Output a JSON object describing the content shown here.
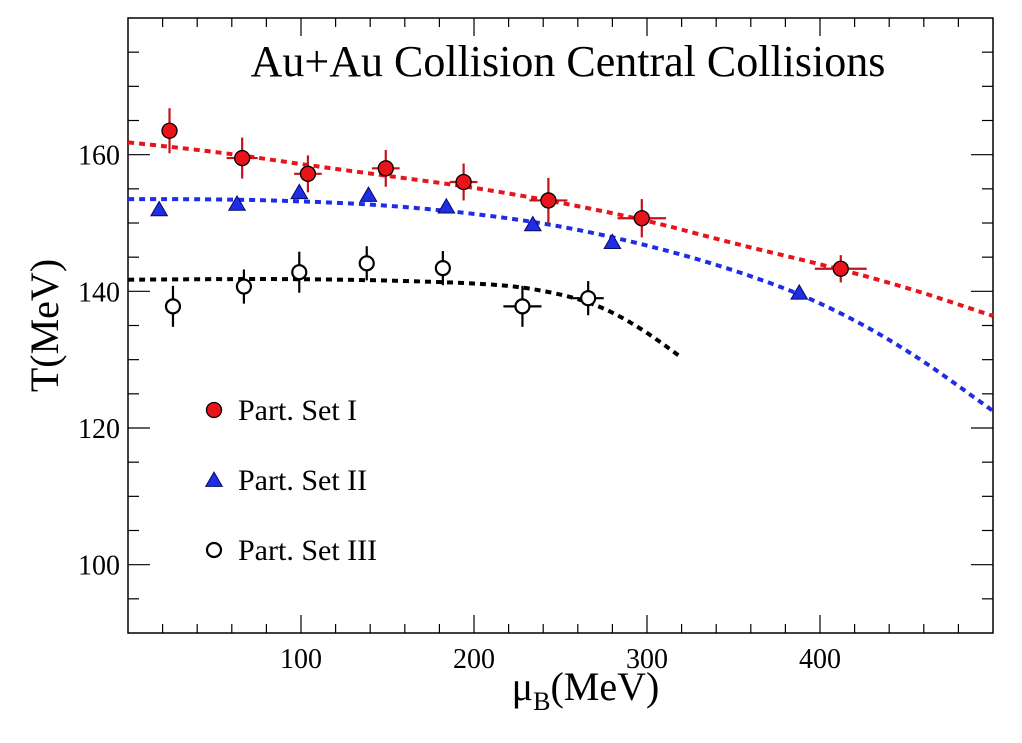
{
  "chart_data": {
    "type": "scatter",
    "title": "Au+Au Collision Central Collisions",
    "xlabel": "μ",
    "xlabel_sub": "B",
    "xlabel_unit": "(MeV)",
    "ylabel": "T(MeV)",
    "xlim": [
      0,
      500
    ],
    "ylim": [
      90,
      180
    ],
    "x_ticks": [
      100,
      200,
      300,
      400
    ],
    "y_ticks": [
      100,
      120,
      140,
      160
    ],
    "legend_position": "center-left",
    "series": [
      {
        "name": "Part. Set I",
        "marker": "circle-filled",
        "color": "#e8131b",
        "errcolor": "#c0141c",
        "points": [
          {
            "x": 24,
            "y": 163.5,
            "xerr": 0,
            "yerr": 3.3
          },
          {
            "x": 66,
            "y": 159.5,
            "xerr": 9,
            "yerr": 3.0
          },
          {
            "x": 104,
            "y": 157.2,
            "xerr": 8,
            "yerr": 2.7
          },
          {
            "x": 149,
            "y": 158.0,
            "xerr": 8,
            "yerr": 2.7
          },
          {
            "x": 194,
            "y": 156.0,
            "xerr": 8,
            "yerr": 2.7
          },
          {
            "x": 243,
            "y": 153.3,
            "xerr": 11,
            "yerr": 3.3
          },
          {
            "x": 297,
            "y": 150.7,
            "xerr": 14,
            "yerr": 2.8
          },
          {
            "x": 412,
            "y": 143.3,
            "xerr": 15,
            "yerr": 2.0
          }
        ],
        "fit_curve": [
          [
            0,
            161.8
          ],
          [
            50,
            160.5
          ],
          [
            100,
            158.6
          ],
          [
            150,
            156.9
          ],
          [
            200,
            155.2
          ],
          [
            250,
            153.0
          ],
          [
            300,
            150.4
          ],
          [
            350,
            147.0
          ],
          [
            400,
            144.0
          ],
          [
            450,
            140.6
          ],
          [
            500,
            136.4
          ]
        ]
      },
      {
        "name": "Part. Set II",
        "marker": "triangle-filled",
        "color": "#1f2de6",
        "errcolor": "#1f2de6",
        "points": [
          {
            "x": 18,
            "y": 152.0,
            "xerr": 0,
            "yerr": 0
          },
          {
            "x": 63,
            "y": 152.8,
            "xerr": 0,
            "yerr": 0
          },
          {
            "x": 99,
            "y": 154.5,
            "xerr": 0,
            "yerr": 0
          },
          {
            "x": 139,
            "y": 154.1,
            "xerr": 0,
            "yerr": 0
          },
          {
            "x": 184,
            "y": 152.4,
            "xerr": 0,
            "yerr": 0
          },
          {
            "x": 234,
            "y": 149.8,
            "xerr": 0,
            "yerr": 0
          },
          {
            "x": 280,
            "y": 147.2,
            "xerr": 0,
            "yerr": 0
          },
          {
            "x": 388,
            "y": 139.8,
            "xerr": 0,
            "yerr": 0
          }
        ],
        "fit_curve": [
          [
            0,
            153.5
          ],
          [
            50,
            153.5
          ],
          [
            100,
            153.2
          ],
          [
            150,
            152.6
          ],
          [
            200,
            151.4
          ],
          [
            250,
            149.6
          ],
          [
            300,
            146.8
          ],
          [
            350,
            143.2
          ],
          [
            400,
            138.5
          ],
          [
            450,
            131.6
          ],
          [
            500,
            122.5
          ]
        ]
      },
      {
        "name": "Part. Set III",
        "marker": "circle-open",
        "color": "#000000",
        "errcolor": "#000000",
        "points": [
          {
            "x": 26,
            "y": 137.8,
            "xerr": 0,
            "yerr": 3.0
          },
          {
            "x": 67,
            "y": 140.7,
            "xerr": 0,
            "yerr": 2.5
          },
          {
            "x": 99,
            "y": 142.8,
            "xerr": 0,
            "yerr": 3.0
          },
          {
            "x": 138,
            "y": 144.1,
            "xerr": 0,
            "yerr": 2.5
          },
          {
            "x": 182,
            "y": 143.4,
            "xerr": 0,
            "yerr": 2.5
          },
          {
            "x": 228,
            "y": 137.8,
            "xerr": 11,
            "yerr": 3.0
          },
          {
            "x": 266,
            "y": 139.0,
            "xerr": 9,
            "yerr": 2.5
          }
        ],
        "fit_curve": [
          [
            0,
            141.7
          ],
          [
            50,
            141.8
          ],
          [
            100,
            141.8
          ],
          [
            150,
            141.6
          ],
          [
            200,
            141.2
          ],
          [
            230,
            140.6
          ],
          [
            260,
            139.0
          ],
          [
            280,
            137.0
          ],
          [
            300,
            134.0
          ],
          [
            320,
            130.3
          ]
        ]
      }
    ]
  }
}
